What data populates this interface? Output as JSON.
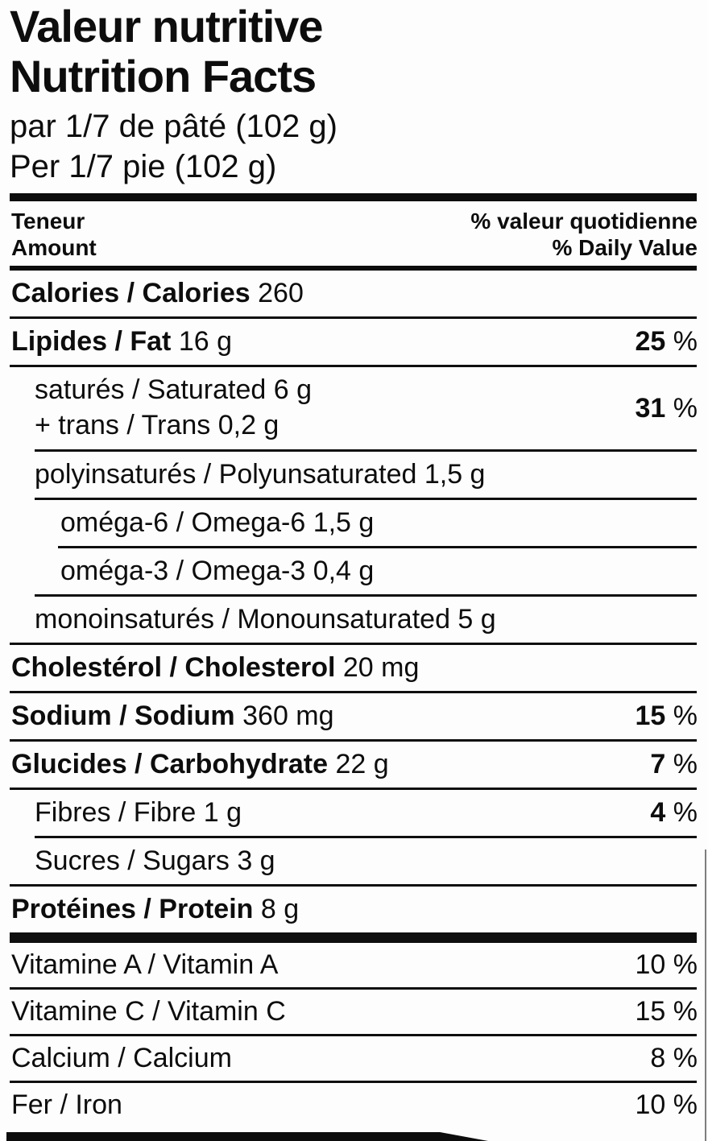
{
  "title": {
    "line1": "Valeur nutritive",
    "line2": "Nutrition Facts"
  },
  "serving": {
    "fr": "par 1/7 de pâté (102 g)",
    "en": "Per 1/7 pie (102 g)"
  },
  "header": {
    "left_fr": "Teneur",
    "left_en": "Amount",
    "right_fr": "% valeur quotidienne",
    "right_en": "% Daily Value"
  },
  "labels": {
    "pct_sign": "%"
  },
  "colors": {
    "text": "#0d0d0d",
    "rule": "#0f0f0f",
    "background": "#fdfdfd"
  },
  "rows": [
    {
      "name": "calories",
      "indent": 0,
      "bold": "Calories / Calories",
      "rest": "260",
      "sep": {
        "indent": 0,
        "h": 3
      }
    },
    {
      "name": "fat",
      "indent": 0,
      "bold": "Lipides / Fat",
      "rest": "16 g",
      "pct": {
        "v": "25",
        "bold": true
      },
      "sep": {
        "indent": 0,
        "h": 3
      }
    },
    {
      "name": "saturated-trans",
      "indent": 1,
      "lines": [
        "saturés / Saturated 6 g",
        "+ trans / Trans 0,2 g"
      ],
      "pct": {
        "v": "31",
        "bold": true
      },
      "sep": {
        "indent": 1,
        "h": 3
      }
    },
    {
      "name": "polyunsaturated",
      "indent": 1,
      "rest": "polyinsaturés / Polyunsaturated 1,5 g",
      "sep": {
        "indent": 1,
        "h": 3
      }
    },
    {
      "name": "omega-6",
      "indent": 2,
      "rest": "oméga-6 / Omega-6 1,5 g",
      "sep": {
        "indent": 2,
        "h": 3
      }
    },
    {
      "name": "omega-3",
      "indent": 2,
      "rest": "oméga-3 / Omega-3 0,4 g",
      "sep": {
        "indent": 1,
        "h": 3
      }
    },
    {
      "name": "monounsaturated",
      "indent": 1,
      "rest": "monoinsaturés / Monounsaturated 5 g",
      "sep": {
        "indent": 0,
        "h": 3
      }
    },
    {
      "name": "cholesterol",
      "indent": 0,
      "bold": "Cholestérol / Cholesterol",
      "rest": "20 mg",
      "sep": {
        "indent": 0,
        "h": 3
      }
    },
    {
      "name": "sodium",
      "indent": 0,
      "bold": "Sodium / Sodium",
      "rest": "360 mg",
      "pct": {
        "v": "15",
        "bold": true
      },
      "sep": {
        "indent": 0,
        "h": 3
      }
    },
    {
      "name": "carbohydrate",
      "indent": 0,
      "bold": "Glucides / Carbohydrate",
      "rest": "22 g",
      "pct": {
        "v": "7",
        "bold": true
      },
      "sep": {
        "indent": 0,
        "h": 3
      }
    },
    {
      "name": "fibre",
      "indent": 1,
      "rest": "Fibres / Fibre 1 g",
      "pct": {
        "v": "4",
        "bold": true
      },
      "sep": {
        "indent": 1,
        "h": 3
      }
    },
    {
      "name": "sugars",
      "indent": 1,
      "rest": "Sucres / Sugars 3 g",
      "sep": {
        "indent": 0,
        "h": 3
      }
    },
    {
      "name": "protein",
      "indent": 0,
      "bold": "Protéines / Protein",
      "rest": "8 g",
      "sep": {
        "indent": 0,
        "h": 13
      }
    },
    {
      "name": "vitamin-a",
      "indent": 0,
      "rest": "Vitamine A / Vitamin A",
      "vitamin": true,
      "pct": {
        "v": "10",
        "bold": false
      },
      "sep": {
        "indent": 0,
        "h": 3
      }
    },
    {
      "name": "vitamin-c",
      "indent": 0,
      "rest": "Vitamine C / Vitamin C",
      "vitamin": true,
      "pct": {
        "v": "15",
        "bold": false
      },
      "sep": {
        "indent": 0,
        "h": 3
      }
    },
    {
      "name": "calcium",
      "indent": 0,
      "rest": "Calcium / Calcium",
      "vitamin": true,
      "pct": {
        "v": "8",
        "bold": false
      },
      "sep": {
        "indent": 0,
        "h": 3
      }
    },
    {
      "name": "iron",
      "indent": 0,
      "rest": "Fer / Iron",
      "vitamin": true,
      "pct": {
        "v": "10",
        "bold": false
      }
    }
  ]
}
